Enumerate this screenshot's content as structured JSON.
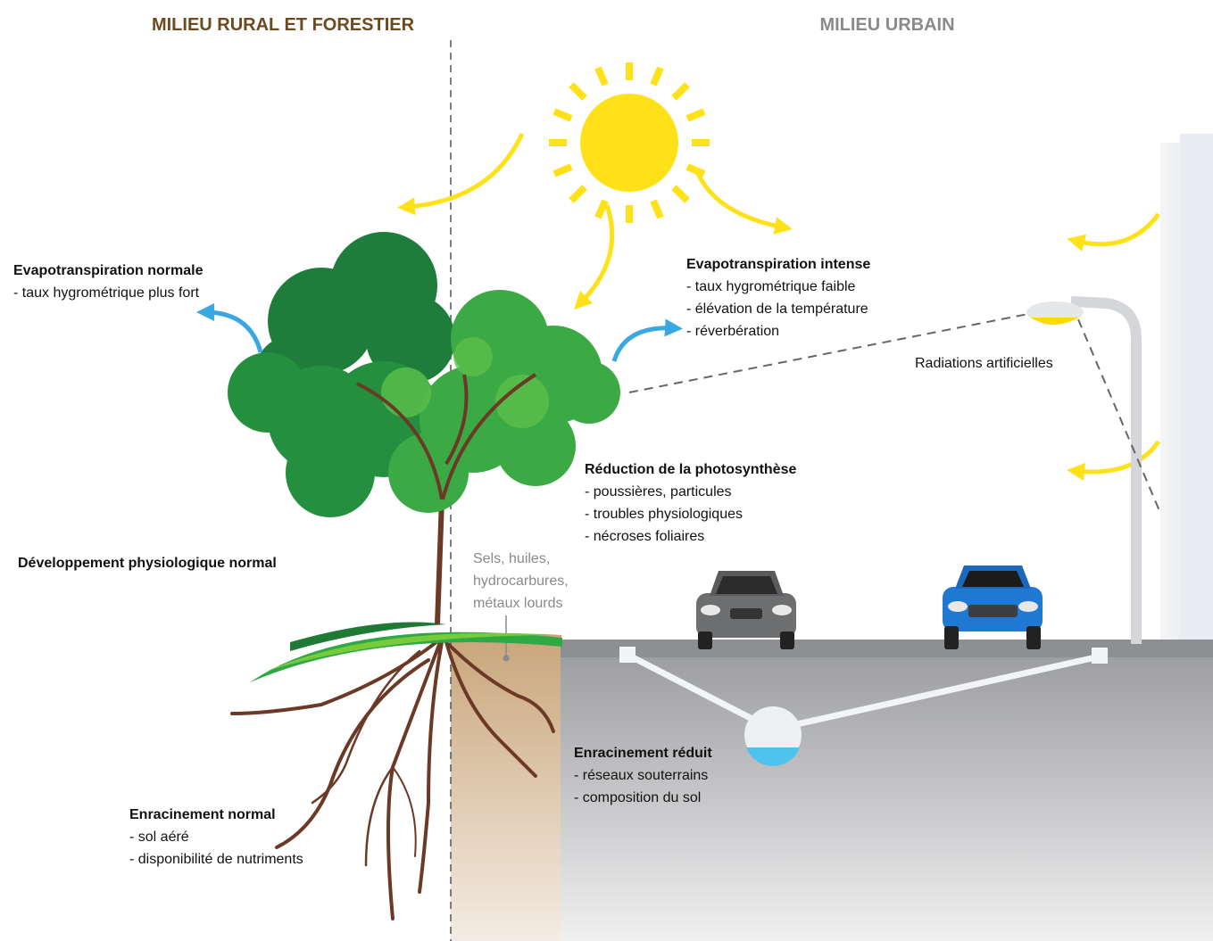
{
  "headings": {
    "rural": "MILIEU RURAL ET FORESTIER",
    "urban": "MILIEU URBAIN"
  },
  "blocks": [
    {
      "title": "Evapotranspiration normale",
      "items": [
        "- taux hygrométrique plus fort"
      ]
    },
    {
      "title": "Evapotranspiration intense",
      "items": [
        "- taux hygrométrique faible",
        "- élévation de la température",
        "- réverbération"
      ]
    },
    {
      "title": "Réduction de la photosynthèse",
      "items": [
        "- poussières, particules",
        "- troubles physiologiques",
        "- nécroses foliaires"
      ]
    },
    {
      "title": "Développement physiologique normal",
      "items": []
    },
    {
      "title": "Enracinement réduit",
      "items": [
        "- réseaux souterrains",
        "- composition du sol"
      ]
    },
    {
      "title": "Enracinement normal",
      "items": [
        "- sol aéré",
        "- disponibilité de nutriments"
      ]
    }
  ],
  "pollutants": [
    "Sels, huiles,",
    "hydrocarbures,",
    "métaux lourds"
  ],
  "radiation": "Radiations artificielles"
}
